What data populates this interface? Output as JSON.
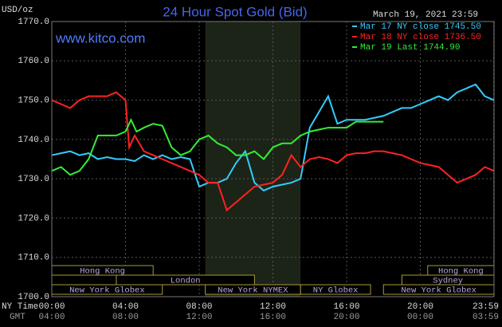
{
  "chart_data": {
    "type": "line",
    "title": "24 Hour Spot Gold (Bid)",
    "date": "March 19, 2021 23:59",
    "source": "www.kitco.com",
    "y_label": "USD/oz",
    "x_label": "NY Time",
    "x2_label": "GMT",
    "xlim": [
      0,
      24
    ],
    "xticks": [
      {
        "value": 0,
        "label": "00:00"
      },
      {
        "value": 4,
        "label": "04:00"
      },
      {
        "value": 8,
        "label": "08:00"
      },
      {
        "value": 12,
        "label": "12:00"
      },
      {
        "value": 16,
        "label": "16:00"
      },
      {
        "value": 20,
        "label": "20:00"
      },
      {
        "value": 23.983,
        "label": "23:59"
      }
    ],
    "x2ticklabels": [
      "04:00",
      "08:00",
      "12:00",
      "16:00",
      "20:00",
      "00:00",
      "03:59"
    ],
    "ylim": [
      1700,
      1770
    ],
    "yticks": [
      {
        "value": 1700,
        "label": "1700.0"
      },
      {
        "value": 1710,
        "label": "1710.0"
      },
      {
        "value": 1720,
        "label": "1720.0"
      },
      {
        "value": 1730,
        "label": "1730.0"
      },
      {
        "value": 1740,
        "label": "1740.0"
      },
      {
        "value": 1750,
        "label": "1750.0"
      },
      {
        "value": 1760,
        "label": "1760.0"
      },
      {
        "value": 1770,
        "label": "1770.0"
      }
    ],
    "grid": true,
    "highlight": [
      8.33,
      13.5
    ],
    "series": [
      {
        "name": "Mar 17 NY close 1745.50",
        "color": "#33ccff",
        "x": [
          0,
          0.5,
          1,
          1.5,
          2,
          2.5,
          3,
          3.5,
          4,
          4.5,
          5,
          5.5,
          6,
          6.5,
          7,
          7.5,
          8,
          8.5,
          9,
          9.5,
          10,
          10.5,
          11,
          11.5,
          12,
          12.5,
          13,
          13.5,
          14,
          14.5,
          15,
          15.5,
          16,
          16.5,
          17,
          17.5,
          18,
          18.5,
          19,
          19.5,
          20,
          20.5,
          21,
          21.5,
          22,
          22.5,
          23,
          23.5,
          24
        ],
        "values": [
          1736,
          1736.5,
          1737,
          1736,
          1736.5,
          1735,
          1735.5,
          1735,
          1735,
          1734.5,
          1736,
          1735,
          1736,
          1735,
          1735.5,
          1735,
          1728,
          1729,
          1729,
          1730,
          1734,
          1737,
          1729,
          1727,
          1728,
          1728.5,
          1729,
          1730,
          1743,
          1747,
          1751,
          1744,
          1745,
          1745,
          1745,
          1745.5,
          1746,
          1747,
          1748,
          1748,
          1749,
          1750,
          1751,
          1750,
          1752,
          1753,
          1754,
          1751,
          1750
        ]
      },
      {
        "name": "Mar 18 NY close 1736.50",
        "color": "#ff2222",
        "x": [
          0,
          0.5,
          1,
          1.5,
          2,
          2.5,
          3,
          3.5,
          4,
          4.2,
          4.5,
          5,
          5.5,
          6,
          6.5,
          7,
          7.5,
          8,
          8.5,
          9,
          9.5,
          10,
          10.5,
          11,
          11.5,
          12,
          12.5,
          13,
          13.5,
          14,
          14.5,
          15,
          15.5,
          16,
          16.5,
          17,
          17.5,
          18,
          18.5,
          19,
          19.5,
          20,
          20.5,
          21,
          21.5,
          22,
          22.5,
          23,
          23.5,
          24
        ],
        "values": [
          1750,
          1749,
          1748,
          1750,
          1751,
          1751,
          1751,
          1752,
          1750,
          1738,
          1741,
          1737,
          1736,
          1735,
          1734,
          1733,
          1732,
          1731,
          1729,
          1729,
          1722,
          1724,
          1726,
          1728,
          1728.5,
          1729,
          1731,
          1736,
          1733,
          1735,
          1735.5,
          1735,
          1734,
          1736,
          1736.5,
          1736.5,
          1737,
          1737,
          1736.5,
          1736,
          1735,
          1734,
          1733.5,
          1733,
          1731,
          1729,
          1730,
          1731,
          1733,
          1732
        ]
      },
      {
        "name": "Mar 19 Last 1744.90",
        "color": "#33ee33",
        "x": [
          0,
          0.5,
          1,
          1.5,
          2,
          2.5,
          3,
          3.5,
          4,
          4.3,
          4.6,
          5,
          5.5,
          6,
          6.5,
          7,
          7.5,
          8,
          8.5,
          9,
          9.5,
          10,
          10.5,
          11,
          11.5,
          12,
          12.5,
          13,
          13.5,
          14,
          14.5,
          15,
          15.5,
          16,
          16.5,
          17,
          17.5,
          18
        ],
        "values": [
          1732,
          1733,
          1731,
          1732,
          1735,
          1741,
          1741,
          1741,
          1742,
          1745,
          1742,
          1743,
          1744,
          1743.5,
          1738,
          1736,
          1737,
          1740,
          1741,
          1739,
          1738,
          1736,
          1736,
          1737,
          1735,
          1738,
          1739,
          1739,
          1741,
          1742,
          1742.5,
          1743,
          1743,
          1743,
          1744.5,
          1744.5,
          1744.5,
          1744.5
        ]
      }
    ],
    "sessions": [
      [
        {
          "name": "Hong Kong",
          "start": 0,
          "end": 5.5
        },
        {
          "name": "Hong Kong",
          "start": 20.4,
          "end": 24
        }
      ],
      [
        {
          "name": "London",
          "start": 3.5,
          "end": 11
        },
        {
          "name": "Sydney",
          "start": 19,
          "end": 24
        }
      ],
      [
        {
          "name": "New York Globex",
          "start": 0,
          "end": 6
        },
        {
          "name": "New York NYMEX",
          "start": 8.33,
          "end": 13.5
        },
        {
          "name": "NY Globex",
          "start": 13.5,
          "end": 17.3
        },
        {
          "name": "New York Globex",
          "start": 18,
          "end": 24
        }
      ]
    ]
  }
}
